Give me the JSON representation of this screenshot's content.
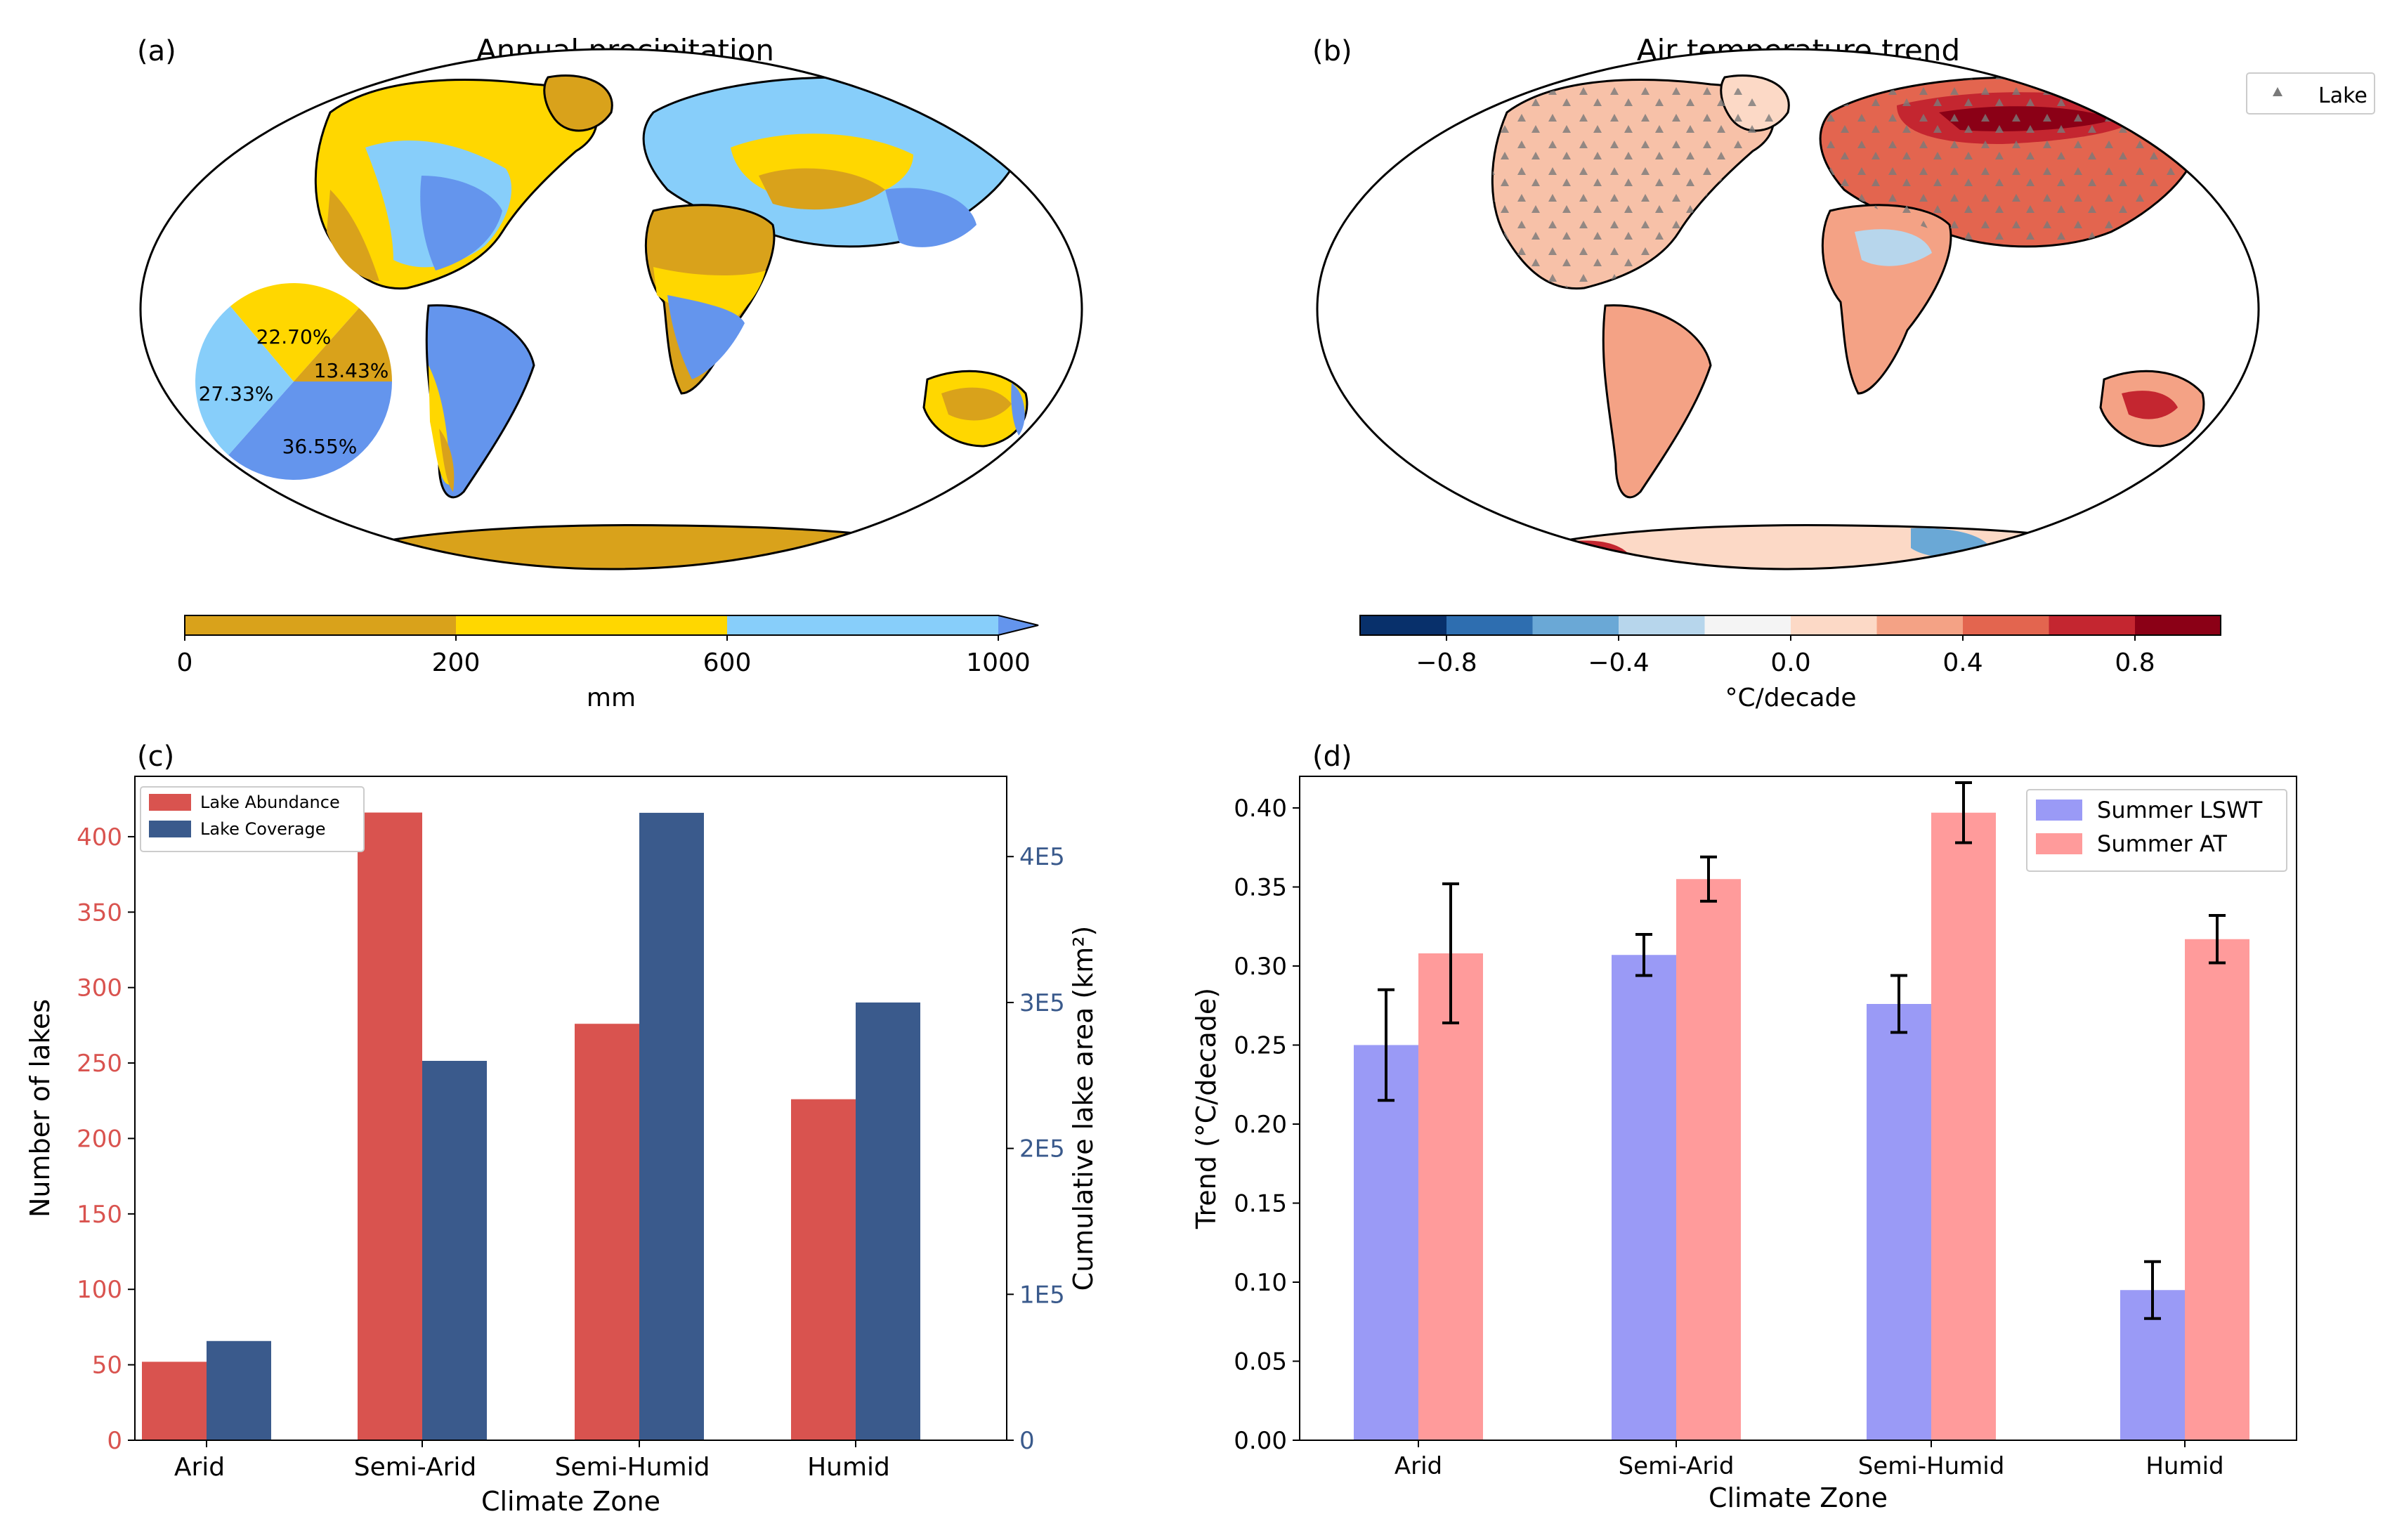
{
  "panels": {
    "a": {
      "label": "(a)",
      "title": "Annual precipitation",
      "pie_labels": [
        "22.70%",
        "13.43%",
        "27.33%",
        "36.55%"
      ],
      "colorbar": {
        "unit": "mm",
        "ticks": [
          "0",
          "200",
          "600",
          "1000"
        ]
      }
    },
    "b": {
      "label": "(b)",
      "title": "Air temperature trend",
      "legend_lake": "Lake",
      "colorbar": {
        "unit": "°C/decade",
        "ticks": [
          "−0.8",
          "−0.4",
          "0.0",
          "0.4",
          "0.8"
        ]
      }
    },
    "c": {
      "label": "(c)"
    },
    "d": {
      "label": "(d)"
    }
  },
  "colors": {
    "arid": "#d9a21b",
    "semi_arid": "#ffd700",
    "semi_humid": "#87cefa",
    "humid": "#6495ed",
    "abundance": "#d9534f",
    "coverage": "#3a5a8c",
    "lswt": "#9a9af6",
    "at": "#ff9b9b",
    "temp_scale": [
      "#08306b",
      "#2e6eb0",
      "#6aa8d6",
      "#b7d6ec",
      "#f4f4f4",
      "#fcd9c6",
      "#f4a285",
      "#e3654f",
      "#c42630",
      "#8b0016"
    ]
  },
  "chart_data": [
    {
      "type": "pie",
      "panel": "a",
      "labels": [
        "Arid",
        "Semi-Arid",
        "Semi-Humid",
        "Humid"
      ],
      "values": [
        13.43,
        22.7,
        27.33,
        36.55
      ]
    },
    {
      "type": "bar",
      "panel": "c",
      "categories": [
        "Arid",
        "Semi-Arid",
        "Semi-Humid",
        "Humid"
      ],
      "series": [
        {
          "name": "Lake Abundance",
          "axis": "left",
          "values": [
            52,
            416,
            276,
            226
          ]
        },
        {
          "name": "Lake Coverage",
          "axis": "right",
          "values": [
            68000,
            260000,
            430000,
            300000
          ]
        }
      ],
      "xlabel": "Climate Zone",
      "ylabel": "Number of lakes",
      "ylabel_right": "Cumulative lake area (km²)",
      "ylim": [
        0,
        440
      ],
      "ylim_right": [
        0,
        455000
      ],
      "yticks": [
        0,
        50,
        100,
        150,
        200,
        250,
        300,
        350,
        400
      ],
      "yticks_right": [
        {
          "value": 0,
          "label": "0"
        },
        {
          "value": 100000,
          "label": "1E5"
        },
        {
          "value": 200000,
          "label": "2E5"
        },
        {
          "value": 300000,
          "label": "3E5"
        },
        {
          "value": 400000,
          "label": "4E5"
        }
      ],
      "legend": "top-left"
    },
    {
      "type": "bar",
      "panel": "d",
      "categories": [
        "Arid",
        "Semi-Arid",
        "Semi-Humid",
        "Humid"
      ],
      "series": [
        {
          "name": "Summer LSWT",
          "values": [
            0.25,
            0.307,
            0.276,
            0.095
          ],
          "errors": [
            0.035,
            0.013,
            0.018,
            0.018
          ]
        },
        {
          "name": "Summer AT",
          "values": [
            0.308,
            0.355,
            0.397,
            0.317
          ],
          "errors": [
            0.044,
            0.014,
            0.019,
            0.015
          ]
        }
      ],
      "xlabel": "Climate Zone",
      "ylabel": "Trend (°C/decade)",
      "ylim": [
        0,
        0.42
      ],
      "yticks": [
        "0.00",
        "0.05",
        "0.10",
        "0.15",
        "0.20",
        "0.25",
        "0.30",
        "0.35",
        "0.40"
      ],
      "legend": "top-right"
    }
  ]
}
